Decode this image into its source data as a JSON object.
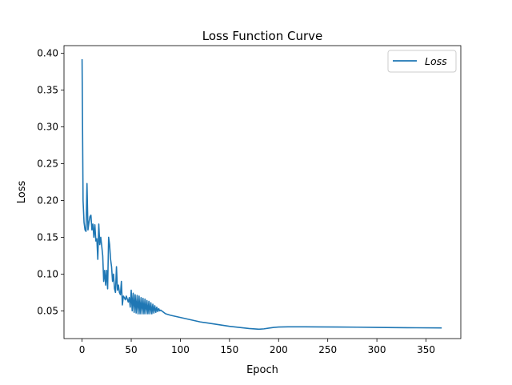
{
  "chart_data": {
    "type": "line",
    "title": "Loss Function Curve",
    "xlabel": "Epoch",
    "ylabel": "Loss",
    "xlim": [
      -18.4,
      385.4
    ],
    "ylim": [
      0.0123,
      0.4105
    ],
    "xticks": [
      0,
      50,
      100,
      150,
      200,
      250,
      300,
      350
    ],
    "yticks": [
      0.05,
      0.1,
      0.15,
      0.2,
      0.25,
      0.3,
      0.35,
      0.4
    ],
    "ytick_labels": [
      "0.05",
      "0.10",
      "0.15",
      "0.20",
      "0.25",
      "0.30",
      "0.35",
      "0.40"
    ],
    "grid": false,
    "legend_position": "top-right",
    "series": [
      {
        "name": "Loss",
        "color": "#1f77b4",
        "x": [
          0,
          1,
          2,
          3,
          4,
          5,
          6,
          7,
          8,
          9,
          10,
          11,
          12,
          13,
          14,
          15,
          16,
          17,
          18,
          19,
          20,
          21,
          22,
          23,
          24,
          25,
          26,
          27,
          28,
          29,
          30,
          31,
          32,
          33,
          34,
          35,
          36,
          37,
          38,
          39,
          40,
          41,
          42,
          43,
          44,
          45,
          46,
          47,
          48,
          49,
          50,
          51,
          52,
          53,
          54,
          55,
          56,
          57,
          58,
          59,
          60,
          61,
          62,
          63,
          64,
          65,
          66,
          67,
          68,
          69,
          70,
          71,
          72,
          73,
          74,
          75,
          76,
          77,
          78,
          79,
          80,
          81,
          82,
          83,
          84,
          85,
          90,
          100,
          110,
          120,
          130,
          140,
          150,
          160,
          170,
          180,
          185,
          190,
          195,
          200,
          210,
          220,
          240,
          260,
          280,
          300,
          320,
          340,
          366
        ],
        "y": [
          0.392,
          0.2,
          0.17,
          0.16,
          0.158,
          0.223,
          0.16,
          0.17,
          0.178,
          0.18,
          0.16,
          0.168,
          0.15,
          0.167,
          0.145,
          0.148,
          0.12,
          0.168,
          0.14,
          0.15,
          0.138,
          0.125,
          0.09,
          0.105,
          0.085,
          0.105,
          0.08,
          0.15,
          0.14,
          0.12,
          0.11,
          0.09,
          0.1,
          0.08,
          0.075,
          0.11,
          0.078,
          0.085,
          0.075,
          0.072,
          0.09,
          0.058,
          0.07,
          0.068,
          0.065,
          0.07,
          0.066,
          0.062,
          0.068,
          0.055,
          0.078,
          0.05,
          0.074,
          0.048,
          0.072,
          0.047,
          0.071,
          0.046,
          0.07,
          0.046,
          0.068,
          0.046,
          0.067,
          0.046,
          0.066,
          0.046,
          0.064,
          0.046,
          0.063,
          0.046,
          0.061,
          0.046,
          0.059,
          0.047,
          0.057,
          0.048,
          0.055,
          0.049,
          0.053,
          0.05,
          0.051,
          0.05,
          0.049,
          0.048,
          0.047,
          0.046,
          0.044,
          0.041,
          0.038,
          0.035,
          0.033,
          0.031,
          0.029,
          0.0275,
          0.026,
          0.025,
          0.0255,
          0.0265,
          0.0275,
          0.028,
          0.0283,
          0.0283,
          0.0282,
          0.028,
          0.0278,
          0.0275,
          0.0272,
          0.027,
          0.0268
        ]
      }
    ]
  }
}
